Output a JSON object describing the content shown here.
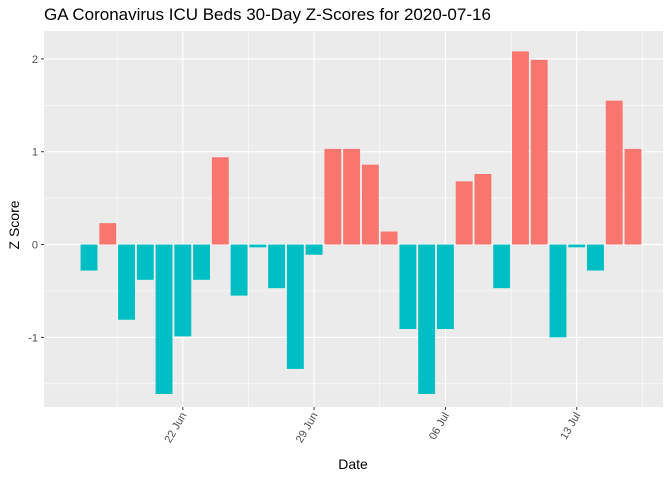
{
  "chart_data": {
    "type": "bar",
    "title": "GA Coronavirus ICU Beds 30-Day Z-Scores for 2020-07-16",
    "xlabel": "Date",
    "ylabel": "Z Score",
    "ylim": [
      -1.75,
      2.3
    ],
    "yticks": [
      -1,
      0,
      1,
      2
    ],
    "grid": true,
    "legend": "none",
    "colors": {
      "positive": "#F8766D",
      "negative": "#00BFC4",
      "panel": "#EBEBEB",
      "grid": "#FFFFFF"
    },
    "xlim_days": [
      -2.4,
      30.6
    ],
    "xticks": [
      {
        "label": "22 Jun",
        "day": 5
      },
      {
        "label": "29 Jun",
        "day": 12
      },
      {
        "label": "06 Jul",
        "day": 19
      },
      {
        "label": "13 Jul",
        "day": 26
      }
    ],
    "dates": [
      "2020-06-17",
      "2020-06-18",
      "2020-06-19",
      "2020-06-20",
      "2020-06-21",
      "2020-06-22",
      "2020-06-23",
      "2020-06-24",
      "2020-06-25",
      "2020-06-26",
      "2020-06-27",
      "2020-06-28",
      "2020-06-29",
      "2020-06-30",
      "2020-07-01",
      "2020-07-02",
      "2020-07-03",
      "2020-07-04",
      "2020-07-05",
      "2020-07-06",
      "2020-07-07",
      "2020-07-08",
      "2020-07-09",
      "2020-07-10",
      "2020-07-11",
      "2020-07-12",
      "2020-07-13",
      "2020-07-14",
      "2020-07-15",
      "2020-07-16"
    ],
    "values": [
      -0.28,
      0.23,
      -0.81,
      -0.38,
      -1.61,
      -0.99,
      -0.38,
      0.94,
      -0.55,
      -0.03,
      -0.47,
      -1.34,
      -0.11,
      1.03,
      1.03,
      0.86,
      0.14,
      -0.91,
      -1.61,
      -0.91,
      0.68,
      0.76,
      -0.47,
      2.08,
      1.99,
      -1.0,
      -0.03,
      -0.28,
      1.55,
      1.03
    ]
  }
}
